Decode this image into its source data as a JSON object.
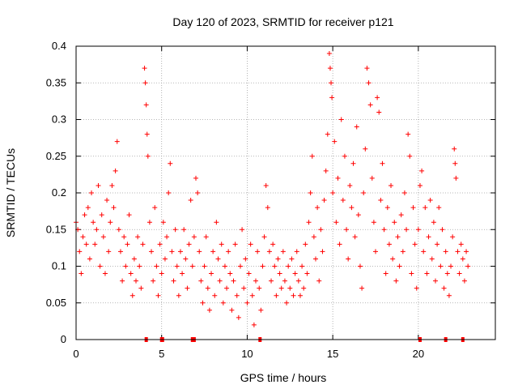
{
  "chart_data": {
    "type": "scatter",
    "title": "Day 120 of 2023, SRMTID for receiver p121",
    "xlabel": "GPS time / hours",
    "ylabel": "SRMTID / TECUs",
    "xlim": [
      0,
      24.5
    ],
    "ylim": [
      0,
      0.4
    ],
    "x_ticks": [
      0,
      5,
      10,
      15,
      20
    ],
    "x_tick_labels": [
      "0",
      "5",
      "10",
      "15",
      "20"
    ],
    "y_ticks": [
      0,
      0.05,
      0.1,
      0.15,
      0.2,
      0.25,
      0.3,
      0.35,
      0.4
    ],
    "y_tick_labels": [
      "0",
      "0.05",
      "0.1",
      "0.15",
      "0.2",
      "0.25",
      "0.3",
      "0.35",
      "0.4"
    ],
    "grid": true,
    "marker": "+",
    "color": "#ff0000",
    "series": [
      {
        "name": "SRMTID",
        "points": [
          [
            0.0,
            0.16
          ],
          [
            0.1,
            0.15
          ],
          [
            0.2,
            0.12
          ],
          [
            0.3,
            0.09
          ],
          [
            0.4,
            0.14
          ],
          [
            0.5,
            0.17
          ],
          [
            0.6,
            0.13
          ],
          [
            0.7,
            0.18
          ],
          [
            0.8,
            0.11
          ],
          [
            0.9,
            0.2
          ],
          [
            1.0,
            0.16
          ],
          [
            1.1,
            0.13
          ],
          [
            1.2,
            0.15
          ],
          [
            1.3,
            0.21
          ],
          [
            1.4,
            0.1
          ],
          [
            1.5,
            0.17
          ],
          [
            1.6,
            0.14
          ],
          [
            1.7,
            0.09
          ],
          [
            1.8,
            0.19
          ],
          [
            1.9,
            0.12
          ],
          [
            2.0,
            0.16
          ],
          [
            2.1,
            0.21
          ],
          [
            2.2,
            0.18
          ],
          [
            2.3,
            0.23
          ],
          [
            2.4,
            0.27
          ],
          [
            2.5,
            0.15
          ],
          [
            2.6,
            0.12
          ],
          [
            2.7,
            0.08
          ],
          [
            2.8,
            0.14
          ],
          [
            2.9,
            0.1
          ],
          [
            3.0,
            0.13
          ],
          [
            3.1,
            0.17
          ],
          [
            3.2,
            0.09
          ],
          [
            3.3,
            0.06
          ],
          [
            3.4,
            0.11
          ],
          [
            3.5,
            0.08
          ],
          [
            3.6,
            0.14
          ],
          [
            3.7,
            0.1
          ],
          [
            3.8,
            0.07
          ],
          [
            3.9,
            0.13
          ],
          [
            4.0,
            0.37
          ],
          [
            4.05,
            0.35
          ],
          [
            4.1,
            0.32
          ],
          [
            4.15,
            0.28
          ],
          [
            4.2,
            0.25
          ],
          [
            4.3,
            0.16
          ],
          [
            4.4,
            0.12
          ],
          [
            4.5,
            0.08
          ],
          [
            4.6,
            0.18
          ],
          [
            4.7,
            0.1
          ],
          [
            4.8,
            0.06
          ],
          [
            4.9,
            0.13
          ],
          [
            5.0,
            0.09
          ],
          [
            5.1,
            0.16
          ],
          [
            5.2,
            0.11
          ],
          [
            5.3,
            0.14
          ],
          [
            5.4,
            0.2
          ],
          [
            5.5,
            0.24
          ],
          [
            5.6,
            0.12
          ],
          [
            5.7,
            0.08
          ],
          [
            5.8,
            0.15
          ],
          [
            5.9,
            0.1
          ],
          [
            6.0,
            0.06
          ],
          [
            6.1,
            0.12
          ],
          [
            6.2,
            0.09
          ],
          [
            6.3,
            0.15
          ],
          [
            6.4,
            0.11
          ],
          [
            6.5,
            0.07
          ],
          [
            6.6,
            0.13
          ],
          [
            6.7,
            0.19
          ],
          [
            6.8,
            0.1
          ],
          [
            6.9,
            0.14
          ],
          [
            7.0,
            0.22
          ],
          [
            7.1,
            0.2
          ],
          [
            7.2,
            0.12
          ],
          [
            7.3,
            0.08
          ],
          [
            7.4,
            0.05
          ],
          [
            7.5,
            0.1
          ],
          [
            7.6,
            0.14
          ],
          [
            7.7,
            0.07
          ],
          [
            7.8,
            0.04
          ],
          [
            7.9,
            0.09
          ],
          [
            8.0,
            0.12
          ],
          [
            8.1,
            0.06
          ],
          [
            8.2,
            0.16
          ],
          [
            8.3,
            0.11
          ],
          [
            8.4,
            0.08
          ],
          [
            8.5,
            0.13
          ],
          [
            8.6,
            0.05
          ],
          [
            8.7,
            0.1
          ],
          [
            8.8,
            0.07
          ],
          [
            8.9,
            0.12
          ],
          [
            9.0,
            0.09
          ],
          [
            9.1,
            0.04
          ],
          [
            9.2,
            0.08
          ],
          [
            9.3,
            0.13
          ],
          [
            9.4,
            0.06
          ],
          [
            9.5,
            0.03
          ],
          [
            9.6,
            0.1
          ],
          [
            9.7,
            0.15
          ],
          [
            9.8,
            0.07
          ],
          [
            9.9,
            0.11
          ],
          [
            10.0,
            0.05
          ],
          [
            10.1,
            0.09
          ],
          [
            10.2,
            0.13
          ],
          [
            10.3,
            0.06
          ],
          [
            10.4,
            0.02
          ],
          [
            10.5,
            0.08
          ],
          [
            10.6,
            0.12
          ],
          [
            10.7,
            0.07
          ],
          [
            10.8,
            0.04
          ],
          [
            10.9,
            0.1
          ],
          [
            11.0,
            0.14
          ],
          [
            11.1,
            0.21
          ],
          [
            11.2,
            0.18
          ],
          [
            11.3,
            0.12
          ],
          [
            11.4,
            0.08
          ],
          [
            11.5,
            0.13
          ],
          [
            11.6,
            0.1
          ],
          [
            11.7,
            0.06
          ],
          [
            11.8,
            0.11
          ],
          [
            11.9,
            0.09
          ],
          [
            12.0,
            0.07
          ],
          [
            12.1,
            0.12
          ],
          [
            12.2,
            0.08
          ],
          [
            12.3,
            0.05
          ],
          [
            12.4,
            0.1
          ],
          [
            12.5,
            0.07
          ],
          [
            12.6,
            0.11
          ],
          [
            12.7,
            0.06
          ],
          [
            12.8,
            0.09
          ],
          [
            12.9,
            0.12
          ],
          [
            13.0,
            0.08
          ],
          [
            13.1,
            0.06
          ],
          [
            13.2,
            0.1
          ],
          [
            13.3,
            0.07
          ],
          [
            13.4,
            0.13
          ],
          [
            13.5,
            0.09
          ],
          [
            13.6,
            0.16
          ],
          [
            13.7,
            0.2
          ],
          [
            13.8,
            0.25
          ],
          [
            13.9,
            0.14
          ],
          [
            14.0,
            0.11
          ],
          [
            14.1,
            0.18
          ],
          [
            14.2,
            0.08
          ],
          [
            14.3,
            0.15
          ],
          [
            14.4,
            0.12
          ],
          [
            14.5,
            0.19
          ],
          [
            14.6,
            0.23
          ],
          [
            14.7,
            0.28
          ],
          [
            14.8,
            0.39
          ],
          [
            14.85,
            0.37
          ],
          [
            14.9,
            0.35
          ],
          [
            14.95,
            0.33
          ],
          [
            15.0,
            0.2
          ],
          [
            15.1,
            0.27
          ],
          [
            15.2,
            0.16
          ],
          [
            15.3,
            0.22
          ],
          [
            15.4,
            0.13
          ],
          [
            15.5,
            0.3
          ],
          [
            15.6,
            0.19
          ],
          [
            15.7,
            0.25
          ],
          [
            15.8,
            0.15
          ],
          [
            15.9,
            0.11
          ],
          [
            16.0,
            0.21
          ],
          [
            16.1,
            0.18
          ],
          [
            16.2,
            0.24
          ],
          [
            16.3,
            0.14
          ],
          [
            16.4,
            0.29
          ],
          [
            16.5,
            0.17
          ],
          [
            16.6,
            0.1
          ],
          [
            16.7,
            0.07
          ],
          [
            16.8,
            0.2
          ],
          [
            16.9,
            0.26
          ],
          [
            17.0,
            0.37
          ],
          [
            17.1,
            0.35
          ],
          [
            17.2,
            0.32
          ],
          [
            17.3,
            0.22
          ],
          [
            17.4,
            0.16
          ],
          [
            17.5,
            0.12
          ],
          [
            17.6,
            0.33
          ],
          [
            17.7,
            0.31
          ],
          [
            17.8,
            0.19
          ],
          [
            17.9,
            0.24
          ],
          [
            18.0,
            0.15
          ],
          [
            18.1,
            0.09
          ],
          [
            18.2,
            0.18
          ],
          [
            18.3,
            0.13
          ],
          [
            18.4,
            0.21
          ],
          [
            18.5,
            0.11
          ],
          [
            18.6,
            0.16
          ],
          [
            18.7,
            0.08
          ],
          [
            18.8,
            0.14
          ],
          [
            18.9,
            0.1
          ],
          [
            19.0,
            0.17
          ],
          [
            19.1,
            0.12
          ],
          [
            19.2,
            0.2
          ],
          [
            19.3,
            0.15
          ],
          [
            19.4,
            0.28
          ],
          [
            19.5,
            0.25
          ],
          [
            19.6,
            0.09
          ],
          [
            19.7,
            0.18
          ],
          [
            19.8,
            0.13
          ],
          [
            19.9,
            0.07
          ],
          [
            20.0,
            0.15
          ],
          [
            20.1,
            0.21
          ],
          [
            20.2,
            0.23
          ],
          [
            20.3,
            0.12
          ],
          [
            20.4,
            0.18
          ],
          [
            20.5,
            0.09
          ],
          [
            20.6,
            0.14
          ],
          [
            20.7,
            0.19
          ],
          [
            20.8,
            0.11
          ],
          [
            20.9,
            0.16
          ],
          [
            21.0,
            0.08
          ],
          [
            21.1,
            0.13
          ],
          [
            21.2,
            0.18
          ],
          [
            21.3,
            0.1
          ],
          [
            21.4,
            0.15
          ],
          [
            21.5,
            0.07
          ],
          [
            21.6,
            0.12
          ],
          [
            21.7,
            0.09
          ],
          [
            21.8,
            0.06
          ],
          [
            21.9,
            0.1
          ],
          [
            22.0,
            0.14
          ],
          [
            22.1,
            0.26
          ],
          [
            22.15,
            0.24
          ],
          [
            22.2,
            0.22
          ],
          [
            22.3,
            0.12
          ],
          [
            22.4,
            0.09
          ],
          [
            22.5,
            0.13
          ],
          [
            22.6,
            0.11
          ],
          [
            22.7,
            0.08
          ],
          [
            22.8,
            0.12
          ],
          [
            22.9,
            0.1
          ]
        ]
      }
    ],
    "zero_markers_x": [
      4.1,
      5.0,
      5.05,
      6.8,
      6.9,
      10.75,
      20.1,
      21.6,
      22.6
    ]
  }
}
